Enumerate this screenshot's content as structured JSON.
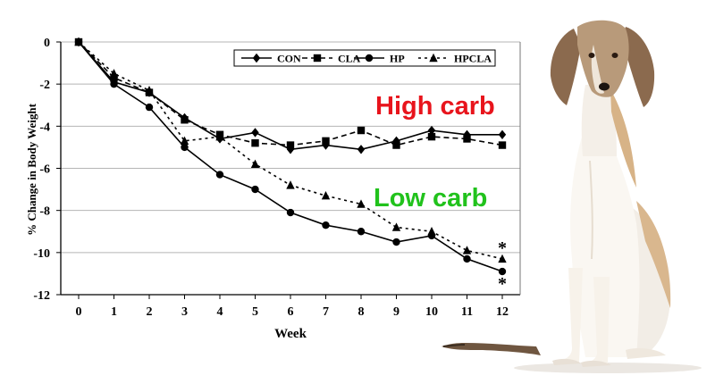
{
  "chart_data": {
    "type": "line",
    "title": "",
    "xlabel": "Week",
    "ylabel": "% Change in Body Weight",
    "x": [
      0,
      1,
      2,
      3,
      4,
      5,
      6,
      7,
      8,
      9,
      10,
      11,
      12
    ],
    "xticks": [
      "0",
      "1",
      "2",
      "3",
      "4",
      "5",
      "6",
      "7",
      "8",
      "9",
      "10",
      "11",
      "12"
    ],
    "yticks": [
      "0",
      "-2",
      "-4",
      "-6",
      "-8",
      "-10",
      "-12"
    ],
    "xlim": [
      0,
      12
    ],
    "ylim": [
      -12,
      0
    ],
    "grid": "horizontal",
    "legend_position": "top",
    "series": [
      {
        "name": "CON",
        "marker": "diamond",
        "line": "solid",
        "values": [
          0,
          -1.9,
          -2.4,
          -3.6,
          -4.6,
          -4.3,
          -5.1,
          -4.9,
          -5.1,
          -4.7,
          -4.2,
          -4.4,
          -4.4
        ]
      },
      {
        "name": "CLA",
        "marker": "square",
        "line": "dashed",
        "values": [
          0,
          -1.7,
          -2.4,
          -3.7,
          -4.4,
          -4.8,
          -4.9,
          -4.7,
          -4.2,
          -4.9,
          -4.5,
          -4.6,
          -4.9
        ]
      },
      {
        "name": "HP",
        "marker": "circle",
        "line": "solid",
        "values": [
          0,
          -2.0,
          -3.1,
          -5.0,
          -6.3,
          -7.0,
          -8.1,
          -8.7,
          -9.0,
          -9.5,
          -9.2,
          -10.3,
          -10.9
        ]
      },
      {
        "name": "HPCLA",
        "marker": "triangle",
        "line": "dotted",
        "values": [
          0,
          -1.5,
          -2.3,
          -4.7,
          -4.5,
          -5.8,
          -6.8,
          -7.3,
          -7.7,
          -8.8,
          -9.0,
          -9.9,
          -10.3
        ]
      }
    ],
    "significance": [
      {
        "x": 12,
        "y": -10.3,
        "label": "*"
      },
      {
        "x": 12,
        "y": -10.9,
        "label": "*"
      }
    ],
    "annotations": [
      {
        "text": "High carb",
        "color": "#e8141c"
      },
      {
        "text": "Low carb",
        "color": "#21c21c"
      }
    ]
  }
}
